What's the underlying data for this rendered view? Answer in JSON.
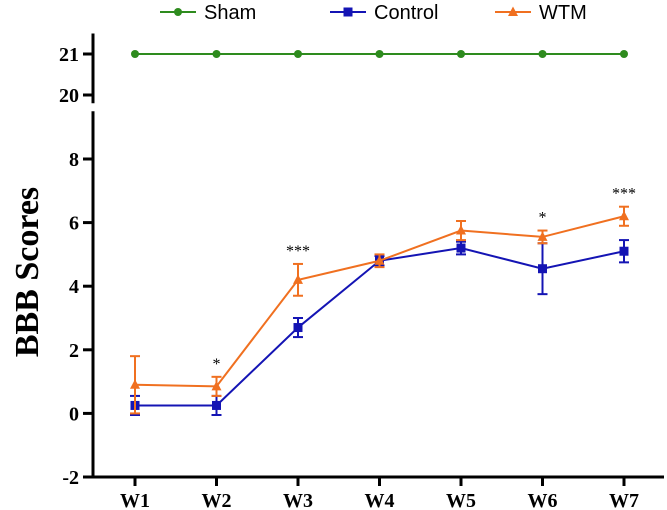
{
  "chart_data": {
    "type": "line",
    "xlabel": "",
    "ylabel": "BBB Scores",
    "categories": [
      "W1",
      "W2",
      "W3",
      "W4",
      "W5",
      "W6",
      "W7"
    ],
    "y_axis_lower": {
      "range": [
        -2,
        9.5
      ],
      "ticks": [
        "-2",
        "0",
        "2",
        "4",
        "6",
        "8"
      ]
    },
    "y_axis_upper": {
      "range": [
        19.8,
        21.5
      ],
      "ticks": [
        "20",
        "21"
      ]
    },
    "axis_break": true,
    "legend_position": "top",
    "series": [
      {
        "name": "Sham",
        "color": "#2e8b1e",
        "marker": "circle",
        "values": [
          21,
          21,
          21,
          21,
          21,
          21,
          21
        ],
        "error": [
          0,
          0,
          0,
          0,
          0,
          0,
          0
        ]
      },
      {
        "name": "Control",
        "color": "#1414b4",
        "marker": "square",
        "values": [
          0.25,
          0.25,
          2.7,
          4.8,
          5.2,
          4.55,
          5.1
        ],
        "error": [
          0.3,
          0.3,
          0.3,
          0.15,
          0.2,
          0.8,
          0.35
        ]
      },
      {
        "name": "WTM",
        "color": "#f07020",
        "marker": "triangle",
        "values": [
          0.9,
          0.85,
          4.2,
          4.8,
          5.75,
          5.55,
          6.2
        ],
        "error": [
          0.9,
          0.3,
          0.5,
          0.2,
          0.3,
          0.2,
          0.3
        ]
      }
    ],
    "annotations": [
      {
        "category": "W2",
        "text": "*"
      },
      {
        "category": "W3",
        "text": "***"
      },
      {
        "category": "W6",
        "text": "*"
      },
      {
        "category": "W7",
        "text": "***"
      }
    ],
    "grid": false
  }
}
